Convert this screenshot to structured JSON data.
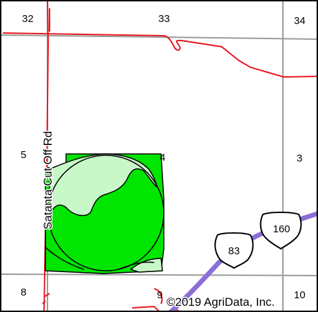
{
  "map": {
    "section_numbers": {
      "s32": "32",
      "s33": "33",
      "s34": "34",
      "s5": "5",
      "s4": "4",
      "s3": "3",
      "s8": "8",
      "s9": "9",
      "s10": "10"
    },
    "road_label": "Satanta Cut Off Rd",
    "highway_shields": {
      "us83": "83",
      "us160": "160"
    },
    "copyright": "©2019 AgriData, Inc.",
    "colors": {
      "field_dark": "#00e600",
      "field_light": "#c8f7c8",
      "section_line": "#9a9a9a",
      "road_red": "#e8161b",
      "highway_purple": "#8b6fd6"
    }
  }
}
